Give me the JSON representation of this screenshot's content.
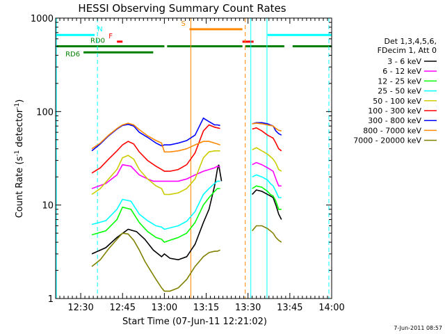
{
  "chart_data": {
    "type": "line",
    "title": "HESSI Observing Summary Count Rates",
    "xlabel": "Start Time (07-Jun-11 12:21:02)",
    "ylabel_main": "Count Rate (s",
    "ylabel_sup1": "-1",
    "ylabel_mid": " detector",
    "ylabel_sup2": "-1",
    "ylabel_end": ")",
    "y_scale": "log",
    "ylim": [
      1,
      1000
    ],
    "xlim_minutes": [
      0,
      99
    ],
    "x_ticks": [
      {
        "min": 9,
        "label": "12:30"
      },
      {
        "min": 24,
        "label": "12:45"
      },
      {
        "min": 39,
        "label": "13:00"
      },
      {
        "min": 54,
        "label": "13:15"
      },
      {
        "min": 69,
        "label": "13:30"
      },
      {
        "min": 84,
        "label": "13:45"
      },
      {
        "min": 99,
        "label": "14:00"
      }
    ],
    "y_ticks": [
      {
        "value": 1,
        "label": "1"
      },
      {
        "value": 10,
        "label": "10"
      },
      {
        "value": 100,
        "label": "100"
      },
      {
        "value": 1000,
        "label": "1000"
      }
    ],
    "legend_header": [
      "Det 1,3,4,5,6,",
      "FDecim 1, Att 0"
    ],
    "legend_placement": "right, outside plot",
    "footer_date": "7-Jun-2011 08:57",
    "series": [
      {
        "name": "3 - 6 keV",
        "color": "#000000",
        "points": [
          [
            13,
            3.0
          ],
          [
            18,
            3.5
          ],
          [
            22,
            4.5
          ],
          [
            26,
            5.5
          ],
          [
            29,
            5.2
          ],
          [
            32,
            4.3
          ],
          [
            35,
            3.3
          ],
          [
            38,
            2.8
          ],
          [
            39,
            3.0
          ],
          [
            41,
            2.7
          ],
          [
            44,
            2.6
          ],
          [
            47,
            2.8
          ],
          [
            50,
            3.8
          ],
          [
            53,
            6.5
          ],
          [
            55,
            9
          ],
          [
            56,
            12
          ],
          [
            57,
            16
          ],
          [
            58,
            24
          ],
          [
            58.5,
            27
          ],
          [
            59,
            22
          ],
          [
            59.5,
            18
          ],
          [
            70.5,
            13
          ],
          [
            72,
            14.5
          ],
          [
            74,
            14
          ],
          [
            76,
            13
          ],
          [
            77,
            12.5
          ],
          [
            78,
            12
          ],
          [
            79,
            10
          ],
          [
            80,
            8
          ],
          [
            81,
            7
          ]
        ]
      },
      {
        "name": "6 - 12 keV",
        "color": "#ff00ff",
        "points": [
          [
            13,
            15
          ],
          [
            18,
            17
          ],
          [
            22,
            21
          ],
          [
            24,
            27
          ],
          [
            27,
            26
          ],
          [
            30,
            21
          ],
          [
            33,
            19
          ],
          [
            35,
            18
          ],
          [
            38,
            18
          ],
          [
            39,
            18
          ],
          [
            41,
            18
          ],
          [
            44,
            18
          ],
          [
            47,
            19
          ],
          [
            50,
            21
          ],
          [
            53,
            23
          ],
          [
            55,
            24
          ],
          [
            57,
            25
          ],
          [
            58,
            26
          ],
          [
            59,
            25.5
          ],
          [
            70.5,
            27
          ],
          [
            72,
            28.5
          ],
          [
            74,
            27
          ],
          [
            76,
            25
          ],
          [
            77,
            24
          ],
          [
            78,
            23
          ],
          [
            79,
            19
          ],
          [
            80,
            16
          ],
          [
            81,
            16
          ]
        ]
      },
      {
        "name": "12 - 25 keV",
        "color": "#00ff00",
        "points": [
          [
            13,
            4.8
          ],
          [
            18,
            5.3
          ],
          [
            22,
            7.0
          ],
          [
            24,
            9.5
          ],
          [
            27,
            9.0
          ],
          [
            30,
            6.5
          ],
          [
            33,
            5.2
          ],
          [
            36,
            4.5
          ],
          [
            38,
            4.3
          ],
          [
            39,
            4.0
          ],
          [
            41,
            4.2
          ],
          [
            44,
            4.5
          ],
          [
            47,
            5.0
          ],
          [
            50,
            6.5
          ],
          [
            53,
            10
          ],
          [
            55,
            12
          ],
          [
            57,
            14
          ],
          [
            58,
            15
          ],
          [
            59,
            15
          ],
          [
            70.5,
            15
          ],
          [
            72,
            16
          ],
          [
            74,
            15.5
          ],
          [
            76,
            14
          ],
          [
            77,
            13
          ],
          [
            78,
            12.5
          ],
          [
            79,
            11
          ],
          [
            80,
            9
          ],
          [
            81,
            9
          ]
        ]
      },
      {
        "name": "25 - 50 keV",
        "color": "#00ffff",
        "points": [
          [
            13,
            6.2
          ],
          [
            18,
            6.8
          ],
          [
            22,
            9.0
          ],
          [
            24,
            11.5
          ],
          [
            27,
            11
          ],
          [
            30,
            8.0
          ],
          [
            33,
            6.8
          ],
          [
            36,
            6.0
          ],
          [
            38,
            5.8
          ],
          [
            39,
            5.5
          ],
          [
            41,
            5.7
          ],
          [
            44,
            6.0
          ],
          [
            47,
            6.7
          ],
          [
            50,
            8.5
          ],
          [
            53,
            13
          ],
          [
            55,
            15
          ],
          [
            57,
            17
          ],
          [
            58,
            18
          ],
          [
            59,
            18
          ],
          [
            70.5,
            20
          ],
          [
            72,
            21
          ],
          [
            74,
            20
          ],
          [
            76,
            18.5
          ],
          [
            77,
            17
          ],
          [
            78,
            16
          ],
          [
            79,
            14
          ],
          [
            80,
            12
          ],
          [
            81,
            12
          ]
        ]
      },
      {
        "name": "50 - 100 keV",
        "color": "#cccc00",
        "points": [
          [
            13,
            13
          ],
          [
            16,
            15
          ],
          [
            19,
            19
          ],
          [
            22,
            24
          ],
          [
            24,
            32
          ],
          [
            26,
            34
          ],
          [
            28,
            31
          ],
          [
            30,
            24
          ],
          [
            33,
            19
          ],
          [
            36,
            16
          ],
          [
            38,
            15
          ],
          [
            39,
            13
          ],
          [
            41,
            13
          ],
          [
            44,
            13.5
          ],
          [
            47,
            15
          ],
          [
            50,
            19
          ],
          [
            53,
            32
          ],
          [
            55,
            37
          ],
          [
            57,
            38
          ],
          [
            58,
            38
          ],
          [
            59,
            38
          ],
          [
            70.5,
            39
          ],
          [
            72,
            41
          ],
          [
            74,
            38
          ],
          [
            76,
            35
          ],
          [
            77,
            33
          ],
          [
            78,
            31
          ],
          [
            79,
            28
          ],
          [
            80,
            24
          ],
          [
            81,
            23
          ]
        ]
      },
      {
        "name": "100 - 300 keV",
        "color": "#ff0000",
        "points": [
          [
            13,
            22
          ],
          [
            16,
            25
          ],
          [
            19,
            31
          ],
          [
            22,
            38
          ],
          [
            24,
            44
          ],
          [
            26,
            48
          ],
          [
            28,
            45
          ],
          [
            30,
            37
          ],
          [
            33,
            30
          ],
          [
            36,
            26
          ],
          [
            38,
            24
          ],
          [
            39,
            23
          ],
          [
            41,
            23
          ],
          [
            44,
            24
          ],
          [
            47,
            27
          ],
          [
            50,
            36
          ],
          [
            53,
            62
          ],
          [
            55,
            72
          ],
          [
            57,
            68
          ],
          [
            58,
            67
          ],
          [
            59,
            66
          ],
          [
            70.5,
            65
          ],
          [
            72,
            67
          ],
          [
            74,
            62
          ],
          [
            76,
            56
          ],
          [
            77,
            54
          ],
          [
            78,
            52
          ],
          [
            79,
            46
          ],
          [
            80,
            40
          ],
          [
            81,
            38
          ]
        ]
      },
      {
        "name": "300 - 800 keV",
        "color": "#0000ff",
        "points": [
          [
            13,
            38
          ],
          [
            16,
            45
          ],
          [
            19,
            55
          ],
          [
            22,
            65
          ],
          [
            24,
            71
          ],
          [
            26,
            73
          ],
          [
            28,
            70
          ],
          [
            30,
            60
          ],
          [
            33,
            53
          ],
          [
            36,
            46
          ],
          [
            38,
            43
          ],
          [
            39,
            44
          ],
          [
            41,
            44
          ],
          [
            44,
            46
          ],
          [
            47,
            49
          ],
          [
            50,
            56
          ],
          [
            53,
            85
          ],
          [
            55,
            78
          ],
          [
            57,
            72
          ],
          [
            58,
            72
          ],
          [
            59,
            71
          ],
          [
            70.5,
            74
          ],
          [
            72,
            76
          ],
          [
            74,
            76
          ],
          [
            76,
            74
          ],
          [
            77,
            72
          ],
          [
            78,
            70
          ],
          [
            79,
            62
          ],
          [
            80,
            58
          ],
          [
            81,
            56
          ]
        ]
      },
      {
        "name": "800 - 7000 keV",
        "color": "#ff8800",
        "points": [
          [
            13,
            40
          ],
          [
            16,
            46
          ],
          [
            19,
            56
          ],
          [
            22,
            66
          ],
          [
            24,
            72
          ],
          [
            26,
            75
          ],
          [
            28,
            72
          ],
          [
            30,
            64
          ],
          [
            33,
            55
          ],
          [
            36,
            49
          ],
          [
            38,
            46
          ],
          [
            39,
            37
          ],
          [
            41,
            37
          ],
          [
            44,
            38
          ],
          [
            47,
            40
          ],
          [
            50,
            44
          ],
          [
            53,
            48
          ],
          [
            55,
            48
          ],
          [
            57,
            46
          ],
          [
            58,
            45
          ],
          [
            59,
            44
          ],
          [
            70.5,
            74
          ],
          [
            72,
            75
          ],
          [
            74,
            74
          ],
          [
            76,
            72
          ],
          [
            77,
            71
          ],
          [
            78,
            70
          ],
          [
            79,
            66
          ],
          [
            80,
            63
          ],
          [
            81,
            62
          ]
        ]
      },
      {
        "name": "7000 - 20000 keV",
        "color": "#808000",
        "points": [
          [
            13,
            2.2
          ],
          [
            16,
            2.6
          ],
          [
            19,
            3.4
          ],
          [
            22,
            4.3
          ],
          [
            24,
            5.0
          ],
          [
            26,
            4.9
          ],
          [
            28,
            4.2
          ],
          [
            30,
            3.3
          ],
          [
            32,
            2.5
          ],
          [
            34,
            2.0
          ],
          [
            36,
            1.6
          ],
          [
            38,
            1.3
          ],
          [
            39,
            1.2
          ],
          [
            41,
            1.2
          ],
          [
            44,
            1.3
          ],
          [
            47,
            1.6
          ],
          [
            50,
            2.2
          ],
          [
            53,
            2.8
          ],
          [
            55,
            3.1
          ],
          [
            57,
            3.2
          ],
          [
            58,
            3.2
          ],
          [
            59,
            3.3
          ],
          [
            70.5,
            5.3
          ],
          [
            72,
            6.0
          ],
          [
            74,
            6.0
          ],
          [
            76,
            5.6
          ],
          [
            77,
            5.3
          ],
          [
            78,
            5.0
          ],
          [
            79,
            4.5
          ],
          [
            80,
            4.2
          ],
          [
            81,
            4.0
          ]
        ]
      }
    ],
    "flags": [
      {
        "label": "N",
        "color": "#00ffff",
        "y": 660,
        "segments": [
          [
            0,
            14
          ],
          [
            76,
            99
          ]
        ]
      },
      {
        "label": "F",
        "color": "#ff0000",
        "y": 560,
        "segments": [
          [
            22,
            24
          ],
          [
            67,
            71
          ]
        ]
      },
      {
        "label": "S",
        "color": "#ff8800",
        "y": 760,
        "segments": [
          [
            48,
            67
          ]
        ]
      },
      {
        "label": "RD0",
        "color": "#008000",
        "y": 500,
        "segments": [
          [
            0,
            39
          ],
          [
            40,
            67
          ],
          [
            68,
            82
          ],
          [
            85,
            99
          ]
        ]
      },
      {
        "label": "RD6",
        "color": "#008000",
        "y": 430,
        "segments": [
          [
            10,
            35
          ]
        ]
      }
    ],
    "vertical_lines": [
      {
        "min": 0.3,
        "color": "#00ffff",
        "style": "solid"
      },
      {
        "min": 15,
        "color": "#00ffff",
        "style": "dashed"
      },
      {
        "min": 48.5,
        "color": "#ff8800",
        "style": "solid"
      },
      {
        "min": 68,
        "color": "#ff8800",
        "style": "dashed"
      },
      {
        "min": 70,
        "color": "#00ffff",
        "style": "solid"
      },
      {
        "min": 75.8,
        "color": "#00ffff",
        "style": "solid"
      },
      {
        "min": 98,
        "color": "#00ffff",
        "style": "dashed"
      }
    ]
  }
}
